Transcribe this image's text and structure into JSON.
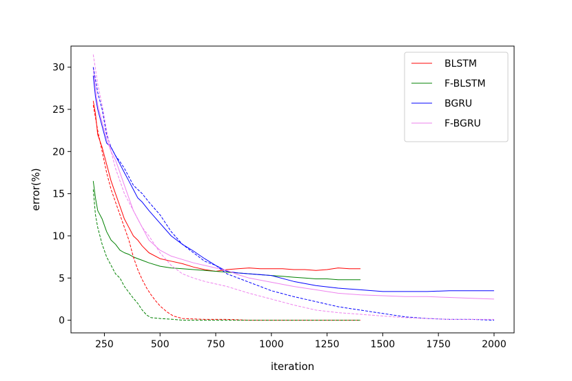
{
  "chart_data": {
    "type": "line",
    "xlabel": "iteration",
    "ylabel": "error(%)",
    "xlim": [
      100,
      2090
    ],
    "ylim": [
      -1.5,
      32.5
    ],
    "xticks": [
      250,
      500,
      750,
      1000,
      1250,
      1500,
      1750,
      2000
    ],
    "yticks": [
      0,
      5,
      10,
      15,
      20,
      25,
      30
    ],
    "grid": false,
    "legend_position": "top-right",
    "series": [
      {
        "name": "BLSTM",
        "color": "#ff0000",
        "style": "solid",
        "x": [
          200,
          210,
          220,
          240,
          260,
          280,
          300,
          320,
          340,
          360,
          380,
          400,
          420,
          450,
          500,
          550,
          600,
          650,
          700,
          750,
          800,
          850,
          900,
          950,
          1000,
          1050,
          1100,
          1150,
          1200,
          1250,
          1300,
          1350,
          1400
        ],
        "y": [
          26,
          24.5,
          22,
          20.5,
          18.5,
          16.5,
          15,
          13.5,
          12,
          11,
          10,
          9.5,
          8.8,
          8,
          7.3,
          7,
          6.7,
          6.3,
          6,
          5.8,
          6,
          6.1,
          6.2,
          6.1,
          6.1,
          6.1,
          6,
          6,
          5.9,
          6,
          6.2,
          6.1,
          6.1
        ]
      },
      {
        "name": "F-BLSTM",
        "color": "#008000",
        "style": "solid",
        "x": [
          200,
          210,
          220,
          240,
          260,
          280,
          300,
          320,
          340,
          360,
          380,
          400,
          420,
          450,
          500,
          550,
          600,
          650,
          700,
          750,
          800,
          850,
          900,
          950,
          1000,
          1050,
          1100,
          1150,
          1200,
          1250,
          1300,
          1350,
          1400
        ],
        "y": [
          16.5,
          14.5,
          13,
          12,
          10.5,
          9.5,
          9,
          8.3,
          8,
          7.8,
          7.5,
          7.3,
          7.1,
          6.8,
          6.4,
          6.2,
          6.1,
          6,
          5.9,
          5.8,
          5.7,
          5.6,
          5.5,
          5.4,
          5.3,
          5.2,
          5.1,
          5,
          4.9,
          4.9,
          4.8,
          4.8,
          4.8
        ]
      },
      {
        "name": "BGRU",
        "color": "#0000ff",
        "style": "solid",
        "x": [
          200,
          210,
          220,
          240,
          260,
          280,
          300,
          320,
          340,
          360,
          380,
          400,
          420,
          450,
          500,
          550,
          600,
          650,
          700,
          750,
          800,
          850,
          900,
          1000,
          1100,
          1200,
          1300,
          1400,
          1500,
          1600,
          1700,
          1800,
          1900,
          2000
        ],
        "y": [
          29,
          26.5,
          25,
          23,
          21,
          20.5,
          19.5,
          18.5,
          17.5,
          16.5,
          15.5,
          14.5,
          14,
          13,
          11.5,
          10,
          9,
          8.2,
          7.3,
          6.5,
          5.8,
          5.6,
          5.5,
          5.3,
          4.6,
          4.1,
          3.8,
          3.6,
          3.4,
          3.4,
          3.4,
          3.5,
          3.5,
          3.5
        ]
      },
      {
        "name": "F-BGRU",
        "color": "#ee82ee",
        "style": "solid",
        "x": [
          200,
          210,
          220,
          240,
          260,
          280,
          300,
          320,
          340,
          360,
          380,
          400,
          420,
          450,
          500,
          550,
          600,
          650,
          700,
          750,
          800,
          850,
          900,
          1000,
          1100,
          1200,
          1300,
          1400,
          1500,
          1600,
          1700,
          1800,
          1900,
          2000
        ],
        "y": [
          30,
          27.5,
          25.5,
          23.5,
          21.5,
          20,
          19,
          17.5,
          16,
          14.5,
          13,
          12,
          11,
          9.5,
          8.3,
          7.6,
          7.2,
          6.8,
          6.5,
          6.2,
          5.9,
          5.4,
          5,
          4.5,
          4,
          3.6,
          3.2,
          3,
          2.9,
          2.8,
          2.8,
          2.7,
          2.6,
          2.5
        ]
      },
      {
        "name": "",
        "color": "#ff0000",
        "style": "dashed",
        "x": [
          200,
          220,
          240,
          260,
          280,
          300,
          320,
          340,
          360,
          380,
          400,
          420,
          440,
          460,
          480,
          500,
          530,
          560,
          600,
          700,
          800,
          900,
          1000,
          1100,
          1200,
          1300,
          1400
        ],
        "y": [
          25.5,
          22.5,
          20,
          17.5,
          15.5,
          14,
          12.5,
          11,
          9.5,
          7.5,
          6,
          4.8,
          3.8,
          3,
          2.3,
          1.7,
          1,
          0.5,
          0.2,
          0.1,
          0.1,
          0,
          0,
          0,
          0,
          0,
          0
        ]
      },
      {
        "name": "",
        "color": "#008000",
        "style": "dashed",
        "x": [
          200,
          210,
          220,
          240,
          260,
          280,
          300,
          320,
          340,
          360,
          380,
          400,
          420,
          440,
          460,
          500,
          560,
          600,
          700,
          800,
          1000,
          1200,
          1400
        ],
        "y": [
          15.5,
          12.5,
          11,
          9,
          7.5,
          6.5,
          5.5,
          5,
          4,
          3.3,
          2.6,
          2,
          1.2,
          0.6,
          0.3,
          0.2,
          0.1,
          0,
          0,
          0,
          0,
          0,
          0
        ]
      },
      {
        "name": "",
        "color": "#0000ff",
        "style": "dashed",
        "x": [
          200,
          220,
          240,
          260,
          280,
          300,
          320,
          340,
          360,
          380,
          400,
          420,
          450,
          500,
          550,
          600,
          650,
          700,
          750,
          800,
          900,
          1000,
          1100,
          1200,
          1300,
          1400,
          1500,
          1600,
          1700,
          1800,
          1900,
          2000
        ],
        "y": [
          30,
          27,
          25,
          22,
          20.5,
          19.5,
          18.8,
          18,
          17,
          16,
          15.5,
          15,
          14,
          12.5,
          10.5,
          9,
          8,
          7,
          6.5,
          5.5,
          4.5,
          3.5,
          2.8,
          2.2,
          1.6,
          1.2,
          0.8,
          0.4,
          0.2,
          0.1,
          0.1,
          0
        ]
      },
      {
        "name": "",
        "color": "#ee82ee",
        "style": "dashed",
        "x": [
          200,
          220,
          240,
          260,
          280,
          300,
          320,
          340,
          360,
          380,
          400,
          420,
          450,
          500,
          550,
          600,
          650,
          700,
          800,
          900,
          1000,
          1100,
          1200,
          1300,
          1400,
          1500,
          1600,
          1700,
          1800,
          1900,
          2000
        ],
        "y": [
          31.5,
          28,
          25.5,
          22.5,
          20,
          18,
          16.5,
          15,
          14,
          13,
          12,
          11,
          10,
          8,
          6.5,
          5.5,
          5,
          4.6,
          4,
          3.2,
          2.5,
          1.8,
          1.2,
          0.9,
          0.7,
          0.5,
          0.3,
          0.2,
          0.1,
          0.1,
          0.1
        ]
      }
    ]
  }
}
